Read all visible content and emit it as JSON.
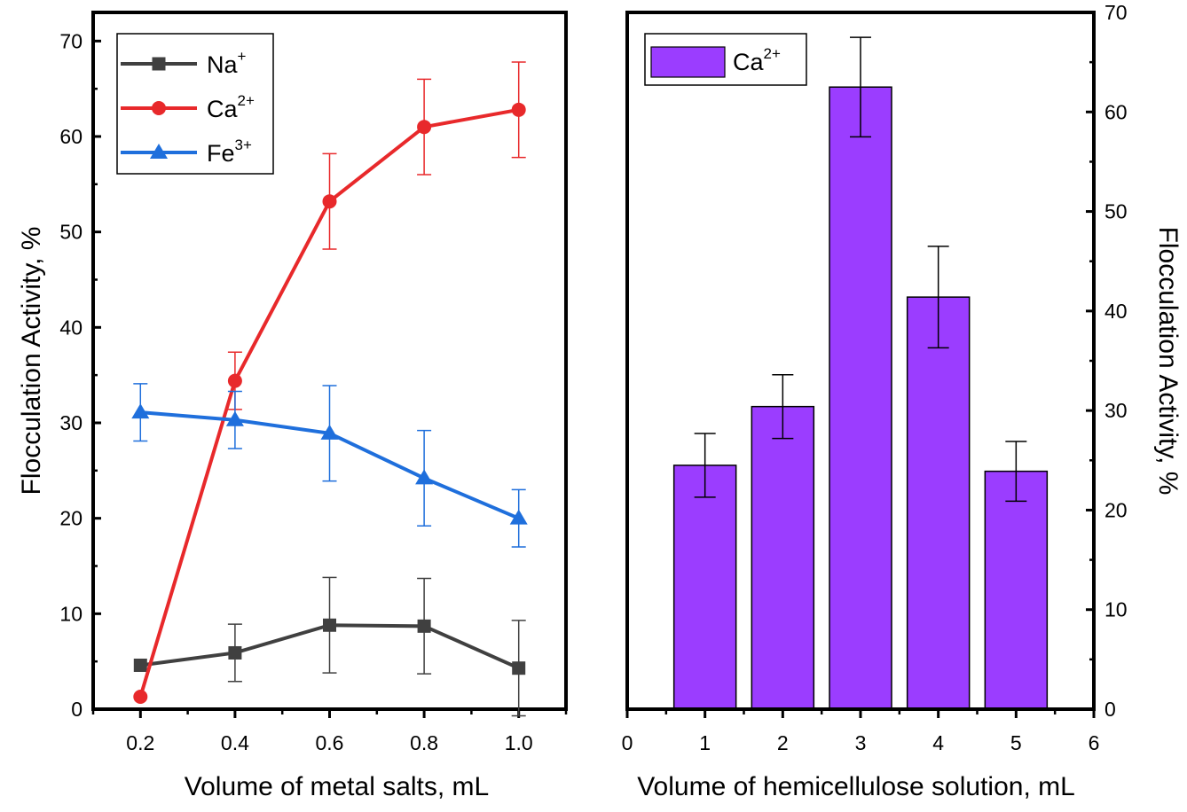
{
  "chart_data": [
    {
      "type": "line",
      "xlabel": "Volume of metal salts, mL",
      "ylabel": "Flocculation Activity, %",
      "xlim": [
        0.1,
        1.1
      ],
      "ylim": [
        0,
        73
      ],
      "x": [
        0.2,
        0.4,
        0.6,
        0.8,
        1.0
      ],
      "x_ticks": [
        "0.2",
        "0.4",
        "0.6",
        "0.8",
        "1.0"
      ],
      "y_ticks": [
        "0",
        "10",
        "20",
        "30",
        "40",
        "50",
        "60",
        "70"
      ],
      "legend_position": "top-left",
      "series": [
        {
          "name": "Na",
          "charge": "+",
          "color": "#404040",
          "marker": "square",
          "values": [
            4.6,
            5.9,
            8.8,
            8.7,
            4.3
          ],
          "errors": [
            0,
            3.0,
            5.0,
            5.0,
            5.0
          ]
        },
        {
          "name": "Ca",
          "charge": "2+",
          "color": "#e8292b",
          "marker": "circle",
          "values": [
            1.3,
            34.4,
            53.2,
            61.0,
            62.8
          ],
          "errors": [
            0,
            3.0,
            5.0,
            5.0,
            5.0
          ]
        },
        {
          "name": "Fe",
          "charge": "3+",
          "color": "#1f6fdc",
          "marker": "triangle",
          "values": [
            31.1,
            30.3,
            28.9,
            24.2,
            20.0
          ],
          "errors": [
            3.0,
            3.0,
            5.0,
            5.0,
            3.0
          ]
        }
      ]
    },
    {
      "type": "bar",
      "xlabel": "Volume of hemicellulose solution, mL",
      "ylabel": "Flocculation Activity, %",
      "xlim": [
        0,
        6
      ],
      "ylim": [
        0,
        70
      ],
      "categories": [
        "1",
        "2",
        "3",
        "4",
        "5"
      ],
      "x": [
        1,
        2,
        3,
        4,
        5
      ],
      "values": [
        24.5,
        30.4,
        62.5,
        41.4,
        23.9
      ],
      "errors": [
        3.2,
        3.2,
        5.0,
        5.1,
        3.0
      ],
      "x_ticks": [
        "0",
        "1",
        "2",
        "3",
        "4",
        "5",
        "6"
      ],
      "y_ticks": [
        "0",
        "10",
        "20",
        "30",
        "40",
        "50",
        "60",
        "70"
      ],
      "legend_position": "top-left",
      "series": [
        {
          "name": "Ca",
          "charge": "2+",
          "color": "#9b3dff"
        }
      ]
    }
  ]
}
